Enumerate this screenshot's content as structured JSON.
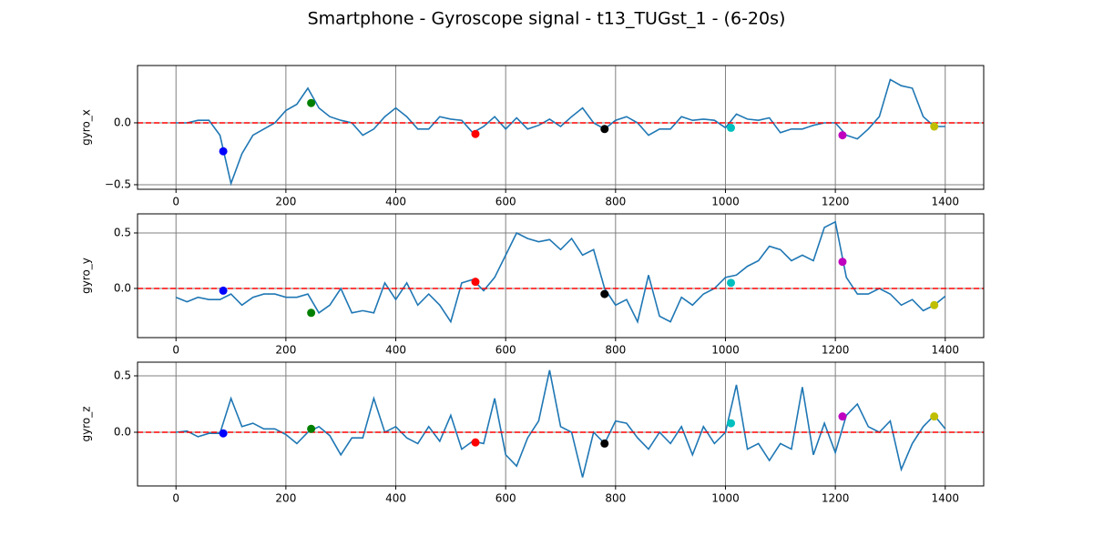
{
  "title": "Smartphone - Gyroscope signal - t13_TUGst_1 - (6-20s)",
  "chart_data": [
    {
      "type": "line",
      "ylabel": "gyro_x",
      "color": "#1f77b4",
      "grid": true,
      "xlim": [
        -70,
        1470
      ],
      "xticks": [
        0,
        200,
        400,
        600,
        800,
        1000,
        1200,
        1400
      ],
      "ylim": [
        -0.537,
        0.463
      ],
      "yticks": [
        {
          "value": -0.5,
          "label": "−0.5"
        },
        {
          "value": 0,
          "label": "0.0"
        }
      ],
      "reference_line": {
        "value": 0,
        "color": "#ff0000"
      },
      "x": [
        0,
        20,
        40,
        60,
        80,
        100,
        120,
        140,
        160,
        180,
        200,
        220,
        240,
        260,
        280,
        300,
        320,
        340,
        360,
        380,
        400,
        420,
        440,
        460,
        480,
        500,
        520,
        540,
        560,
        580,
        600,
        620,
        640,
        660,
        680,
        700,
        720,
        740,
        760,
        780,
        800,
        820,
        840,
        860,
        880,
        900,
        920,
        940,
        960,
        980,
        1000,
        1020,
        1040,
        1060,
        1080,
        1100,
        1120,
        1140,
        1160,
        1180,
        1200,
        1220,
        1240,
        1260,
        1280,
        1300,
        1320,
        1340,
        1360,
        1380,
        1400
      ],
      "values": [
        0,
        0,
        0.02,
        0.02,
        -0.1,
        -0.49,
        -0.25,
        -0.1,
        -0.05,
        0,
        0.1,
        0.15,
        0.28,
        0.12,
        0.05,
        0.02,
        0,
        -0.1,
        -0.05,
        0.05,
        0.12,
        0.05,
        -0.05,
        -0.05,
        0.05,
        0.03,
        0.02,
        -0.08,
        -0.03,
        0.05,
        -0.05,
        0.04,
        -0.05,
        -0.02,
        0.03,
        -0.03,
        0.05,
        0.12,
        0,
        -0.05,
        0.02,
        0.05,
        0,
        -0.1,
        -0.05,
        -0.05,
        0.05,
        0.02,
        0.03,
        0.02,
        -0.04,
        0.07,
        0.03,
        0.02,
        0.04,
        -0.08,
        -0.05,
        -0.05,
        -0.02,
        0,
        0,
        -0.1,
        -0.13,
        -0.05,
        0.05,
        0.35,
        0.3,
        0.28,
        0.05,
        -0.03,
        -0.03
      ],
      "markers": {
        "x": [
          86,
          246,
          545,
          780,
          1010,
          1213,
          1380
        ],
        "values": [
          -0.23,
          0.16,
          -0.09,
          -0.05,
          -0.04,
          -0.1,
          -0.03
        ],
        "colors": [
          "#0000ff",
          "#008000",
          "#ff0000",
          "#000000",
          "#00bfbf",
          "#bf00bf",
          "#bfbf00"
        ]
      }
    },
    {
      "type": "line",
      "ylabel": "gyro_y",
      "color": "#1f77b4",
      "grid": true,
      "xlim": [
        -70,
        1470
      ],
      "xticks": [
        0,
        200,
        400,
        600,
        800,
        1000,
        1200,
        1400
      ],
      "ylim": [
        -0.443,
        0.672
      ],
      "yticks": [
        {
          "value": 0,
          "label": "0.0"
        },
        0.5
      ],
      "reference_line": {
        "value": 0,
        "color": "#ff0000"
      },
      "x": [
        0,
        20,
        40,
        60,
        80,
        100,
        120,
        140,
        160,
        180,
        200,
        220,
        240,
        260,
        280,
        300,
        320,
        340,
        360,
        380,
        400,
        420,
        440,
        460,
        480,
        500,
        520,
        540,
        560,
        580,
        600,
        620,
        640,
        660,
        680,
        700,
        720,
        740,
        760,
        780,
        800,
        820,
        840,
        860,
        880,
        900,
        920,
        940,
        960,
        980,
        1000,
        1020,
        1040,
        1060,
        1080,
        1100,
        1120,
        1140,
        1160,
        1180,
        1200,
        1220,
        1240,
        1260,
        1280,
        1300,
        1320,
        1340,
        1360,
        1380,
        1400
      ],
      "values": [
        -0.08,
        -0.12,
        -0.08,
        -0.1,
        -0.1,
        -0.05,
        -0.15,
        -0.08,
        -0.05,
        -0.05,
        -0.08,
        -0.08,
        -0.05,
        -0.22,
        -0.15,
        0,
        -0.22,
        -0.2,
        -0.22,
        0.05,
        -0.1,
        0.05,
        -0.15,
        -0.05,
        -0.15,
        -0.3,
        0.05,
        0.08,
        -0.02,
        0.1,
        0.3,
        0.5,
        0.45,
        0.42,
        0.44,
        0.35,
        0.45,
        0.3,
        0.35,
        0,
        -0.15,
        -0.1,
        -0.3,
        0.12,
        -0.25,
        -0.3,
        -0.08,
        -0.15,
        -0.05,
        0,
        0.1,
        0.12,
        0.2,
        0.25,
        0.38,
        0.35,
        0.25,
        0.3,
        0.25,
        0.55,
        0.6,
        0.1,
        -0.05,
        -0.05,
        0,
        -0.05,
        -0.15,
        -0.1,
        -0.2,
        -0.15,
        -0.07
      ],
      "markers": {
        "x": [
          86,
          246,
          545,
          780,
          1010,
          1213,
          1380
        ],
        "values": [
          -0.02,
          -0.22,
          0.06,
          -0.05,
          0.05,
          0.24,
          -0.15
        ],
        "colors": [
          "#0000ff",
          "#008000",
          "#ff0000",
          "#000000",
          "#00bfbf",
          "#bf00bf",
          "#bfbf00"
        ]
      }
    },
    {
      "type": "line",
      "ylabel": "gyro_z",
      "color": "#1f77b4",
      "grid": true,
      "xlim": [
        -70,
        1470
      ],
      "xticks": [
        0,
        200,
        400,
        600,
        800,
        1000,
        1200,
        1400
      ],
      "ylim": [
        -0.476,
        0.621
      ],
      "yticks": [
        {
          "value": 0,
          "label": "0.0"
        },
        0.5
      ],
      "reference_line": {
        "value": 0,
        "color": "#ff0000"
      },
      "x": [
        0,
        20,
        40,
        60,
        80,
        100,
        120,
        140,
        160,
        180,
        200,
        220,
        240,
        260,
        280,
        300,
        320,
        340,
        360,
        380,
        400,
        420,
        440,
        460,
        480,
        500,
        520,
        540,
        560,
        580,
        600,
        620,
        640,
        660,
        680,
        700,
        720,
        740,
        760,
        780,
        800,
        820,
        840,
        860,
        880,
        900,
        920,
        940,
        960,
        980,
        1000,
        1020,
        1040,
        1060,
        1080,
        1100,
        1120,
        1140,
        1160,
        1180,
        1200,
        1220,
        1240,
        1260,
        1280,
        1300,
        1320,
        1340,
        1360,
        1380,
        1400
      ],
      "values": [
        0,
        0.01,
        -0.04,
        -0.01,
        -0.01,
        0.3,
        0.05,
        0.08,
        0.03,
        0.03,
        -0.02,
        -0.1,
        0,
        0.05,
        -0.03,
        -0.2,
        -0.05,
        -0.05,
        0.3,
        0,
        0.05,
        -0.05,
        -0.1,
        0.05,
        -0.08,
        0.15,
        -0.15,
        -0.08,
        -0.1,
        0.3,
        -0.2,
        -0.3,
        -0.05,
        0.1,
        0.55,
        0.05,
        0,
        -0.4,
        0,
        -0.1,
        0.1,
        0.08,
        -0.05,
        -0.15,
        0,
        -0.1,
        0.05,
        -0.2,
        0.05,
        -0.1,
        0,
        0.42,
        -0.15,
        -0.1,
        -0.25,
        -0.1,
        -0.15,
        0.4,
        -0.2,
        0.08,
        -0.18,
        0.15,
        0.25,
        0.05,
        0,
        0.1,
        -0.33,
        -0.1,
        0.05,
        0.15,
        0.03
      ],
      "markers": {
        "x": [
          86,
          246,
          545,
          780,
          1010,
          1213,
          1380
        ],
        "values": [
          -0.01,
          0.03,
          -0.09,
          -0.1,
          0.08,
          0.14,
          0.14
        ],
        "colors": [
          "#0000ff",
          "#008000",
          "#ff0000",
          "#000000",
          "#00bfbf",
          "#bf00bf",
          "#bfbf00"
        ]
      }
    }
  ]
}
